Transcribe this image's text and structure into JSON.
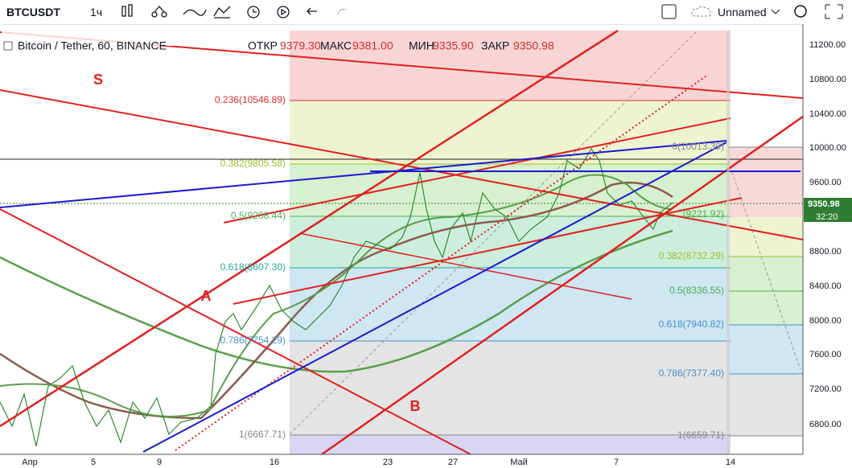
{
  "toolbar": {
    "symbol": "BTCUSDT",
    "interval": "1ч",
    "layout_name": "Unnamed"
  },
  "header": {
    "title": "Bitcoin / Tether, 60, BINANCE",
    "ohlc": [
      {
        "label": "ОТКР",
        "value": "9379.30"
      },
      {
        "label": "МАКС",
        "value": "9381.00"
      },
      {
        "label": "МИН",
        "value": "9335.90"
      },
      {
        "label": "ЗАКР",
        "value": "9350.98"
      }
    ]
  },
  "price_axis": {
    "ticks": [
      "11200.00",
      "10800.00",
      "10400.00",
      "10000.00",
      "9600.00",
      "8800.00",
      "8400.00",
      "8000.00",
      "7600.00",
      "7200.00",
      "6800.00"
    ],
    "current_price": "9350.98",
    "countdown": "32:20"
  },
  "date_axis": [
    "Апр",
    "5",
    "9",
    "16",
    "23",
    "27",
    "Май",
    "7",
    "14"
  ],
  "fib_left": [
    "0.236(10546.89)",
    "0.382(9805.58)",
    "0.5(9208.44)",
    "0.618(8607.30)",
    "0.786(7754.29)",
    "1(6667.71)"
  ],
  "fib_right": [
    "0(10013.39)",
    "(9221.92)",
    "0.382(8732.29)",
    "0.5(8336.55)",
    "0.618(7940.82)",
    "0.786(7377.40)",
    "1(6659.71)"
  ],
  "annotations": [
    "S",
    "A",
    "B"
  ]
}
